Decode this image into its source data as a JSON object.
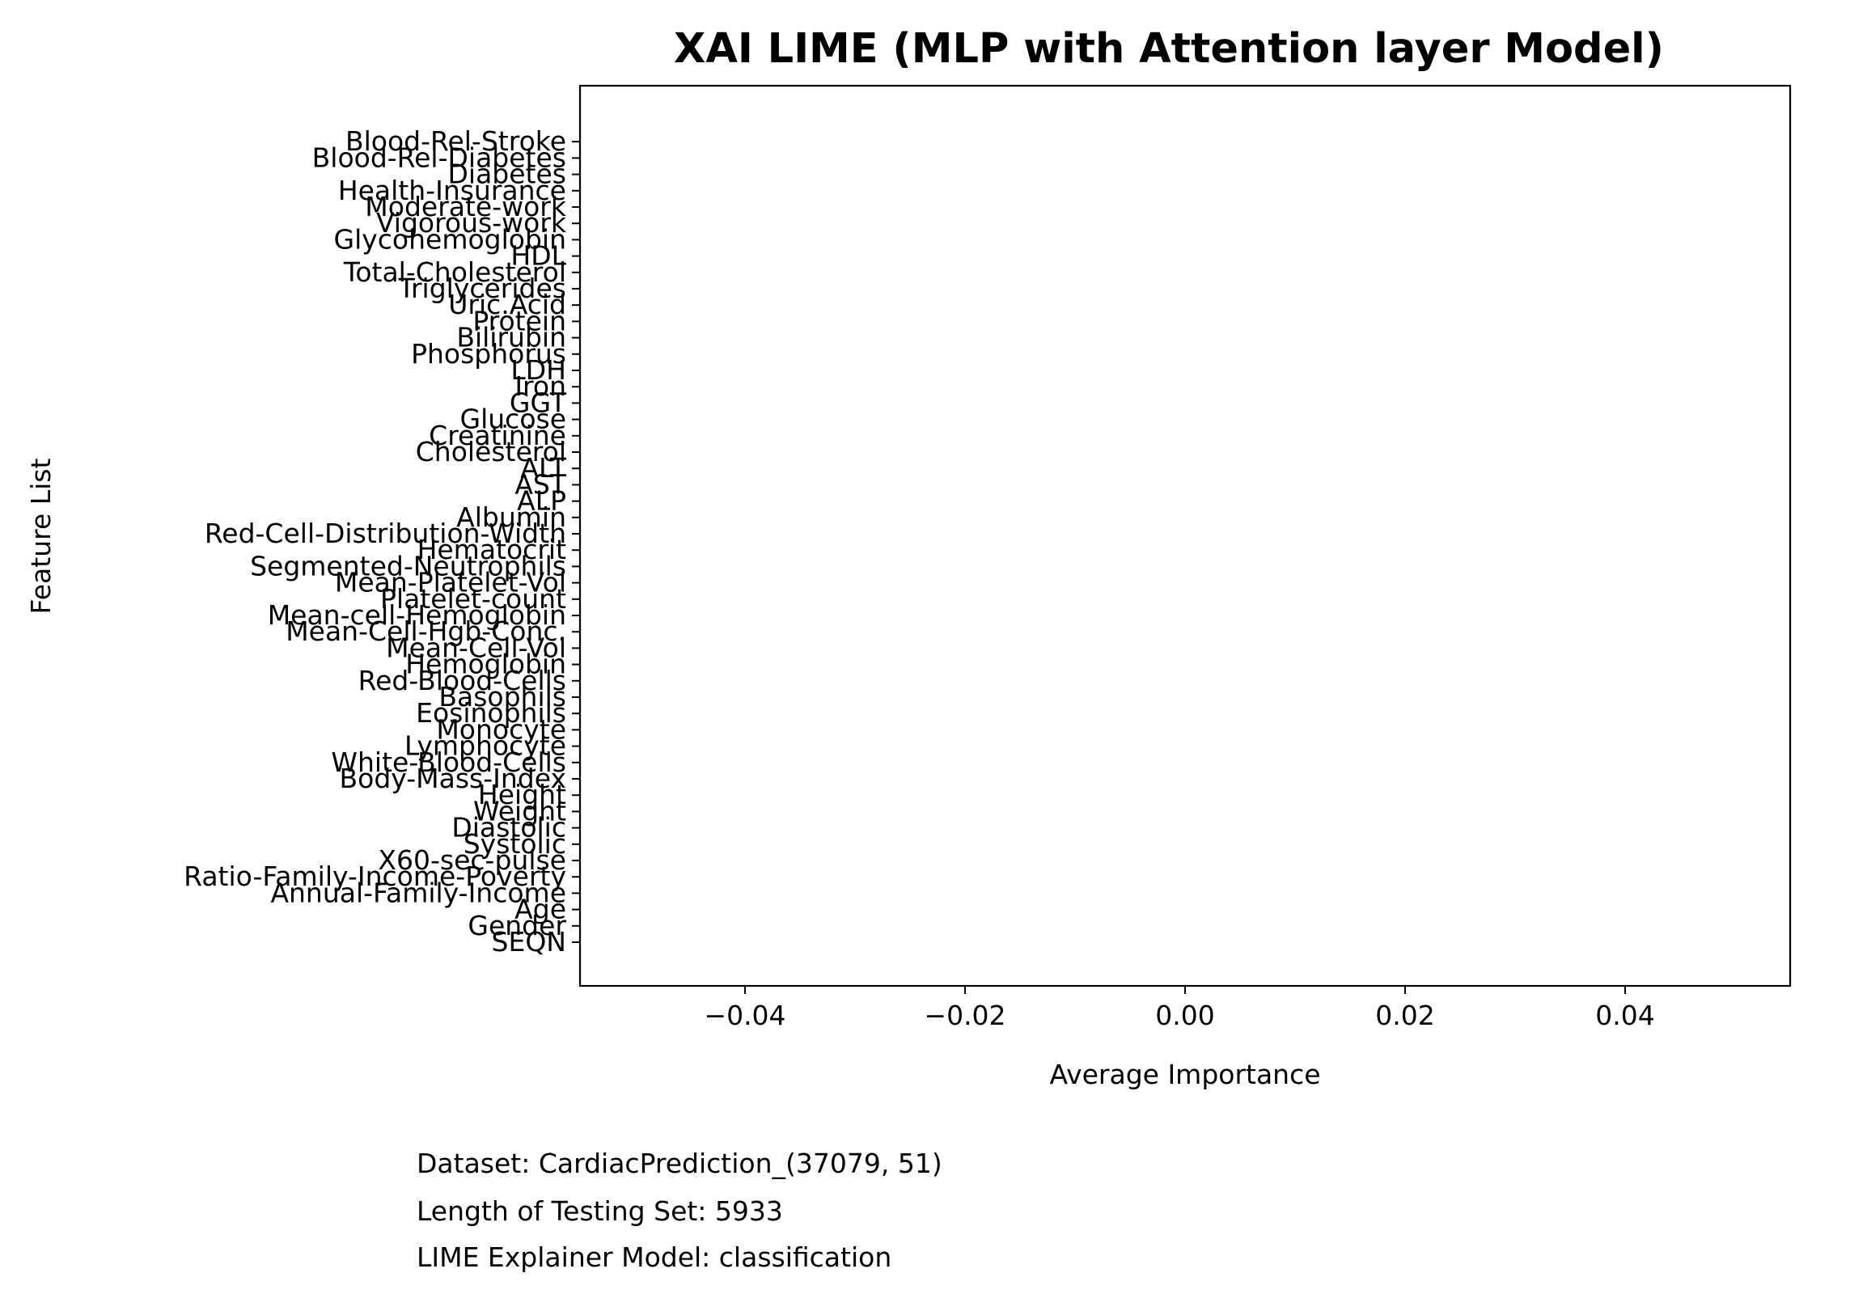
{
  "chart_data": {
    "type": "bar",
    "orientation": "horizontal",
    "title": "XAI LIME (MLP with Attention layer Model)",
    "xlabel": "Average Importance",
    "ylabel": "Feature List",
    "xlim": [
      -0.055,
      0.055
    ],
    "xticks": [
      -0.04,
      -0.02,
      0.0,
      0.02,
      0.04
    ],
    "xtick_labels": [
      "−0.04",
      "−0.02",
      "0.00",
      "0.02",
      "0.04"
    ],
    "grid": false,
    "categories": [
      "SEQN",
      "Gender",
      "Age",
      "Annual-Family-Income",
      "Ratio-Family-Income-Poverty",
      "X60-sec-pulse",
      "Systolic",
      "Diastolic",
      "Weight",
      "Height",
      "Body-Mass-Index",
      "White-Blood-Cells",
      "Lymphocyte",
      "Monocyte",
      "Eosinophils",
      "Basophils",
      "Red-Blood-Cells",
      "Hemoglobin",
      "Mean-Cell-Vol",
      "Mean-Cell-Hgb-Conc.",
      "Mean-cell-Hemoglobin",
      "Platelet-count",
      "Mean-Platelet-Vol",
      "Segmented-Neutrophils",
      "Hematocrit",
      "Red-Cell-Distribution-Width",
      "Albumin",
      "ALP",
      "AST",
      "ALT",
      "Cholesterol",
      "Creatinine",
      "Glucose",
      "GGT",
      "Iron",
      "LDH",
      "Phosphorus",
      "Bilirubin",
      "Protein",
      "Uric.Acid",
      "Triglycerides",
      "Total-Cholesterol",
      "HDL",
      "Glycohemoglobin",
      "Vigorous-work",
      "Moderate-work",
      "Health-Insurance",
      "Diabetes",
      "Blood-Rel-Diabetes",
      "Blood-Rel-Stroke"
    ],
    "values": [
      0,
      0,
      0,
      0,
      0,
      0,
      0,
      0,
      0,
      0,
      0,
      0,
      0,
      0,
      0,
      0,
      0,
      0,
      0,
      0,
      0,
      0,
      0,
      0,
      0,
      0,
      0,
      0,
      0,
      0,
      0,
      0,
      0,
      0,
      0,
      0,
      0,
      0,
      0,
      0,
      0,
      0,
      0,
      0,
      0,
      0,
      0,
      0,
      0,
      0
    ]
  },
  "footer": {
    "dataset": "Dataset:  CardiacPrediction_(37079, 51)",
    "testing_set": "Length of Testing Set: 5933",
    "explainer_model": "LIME Explainer Model: classification"
  }
}
